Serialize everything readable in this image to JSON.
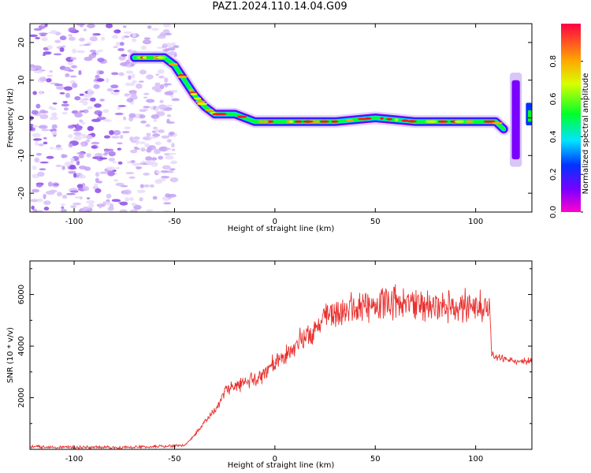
{
  "title": "PAZ1.2024.110.14.04.G09",
  "chart_data": [
    {
      "type": "heatmap",
      "xlabel": "Height of straight line (km)",
      "ylabel": "Frequency (Hz)",
      "xlim": [
        -122,
        128
      ],
      "ylim": [
        -25,
        25
      ],
      "xticks": [
        -100,
        -50,
        0,
        50,
        100
      ],
      "yticks": [
        -20,
        -10,
        0,
        10,
        20
      ],
      "colorbar": {
        "label": "Normalized spectral amplitude",
        "range": [
          0,
          1
        ],
        "ticks": [
          "0.0",
          "0.2",
          "0.4",
          "0.6",
          "0.8"
        ],
        "colormap": "gist_rainbow_r"
      },
      "ridge": {
        "x": [
          -70,
          -55,
          -50,
          -45,
          -40,
          -35,
          -30,
          -20,
          -10,
          0,
          10,
          30,
          50,
          70,
          90,
          110,
          114
        ],
        "y": [
          16,
          16,
          14,
          10,
          6,
          3,
          1,
          1,
          -1,
          -1,
          -1,
          -1,
          0,
          -1,
          -1,
          -1,
          -3
        ]
      },
      "edge_feature": {
        "x": [
          118,
          122,
          126
        ],
        "y": [
          -8,
          5,
          0
        ]
      }
    },
    {
      "type": "line",
      "xlabel": "Height of straight line (km)",
      "ylabel": "SNR (10 * v/v)",
      "xlim": [
        -122,
        128
      ],
      "ylim": [
        0,
        7300
      ],
      "xticks": [
        -100,
        -50,
        0,
        50,
        100
      ],
      "yticks": [
        2000,
        4000,
        6000
      ],
      "color": "#e8302e",
      "series": [
        {
          "x": [
            -122,
            -100,
            -80,
            -60,
            -45,
            -40,
            -35,
            -30,
            -25,
            -20,
            -15,
            -10,
            -5,
            0,
            5,
            10,
            15,
            20,
            25,
            30,
            35,
            40,
            45,
            50,
            55,
            60,
            65,
            70,
            75,
            80,
            85,
            90,
            95,
            100,
            105,
            107,
            108,
            110,
            115,
            120,
            128
          ],
          "y": [
            100,
            80,
            70,
            100,
            150,
            550,
            1050,
            1450,
            2250,
            2450,
            2550,
            2750,
            2950,
            3350,
            3650,
            3950,
            4350,
            4750,
            5100,
            5300,
            5400,
            5500,
            5550,
            5600,
            5650,
            5750,
            5700,
            5650,
            5600,
            5550,
            5600,
            5500,
            5500,
            5500,
            5500,
            5450,
            3650,
            3550,
            3500,
            3450,
            3400
          ]
        }
      ]
    }
  ]
}
